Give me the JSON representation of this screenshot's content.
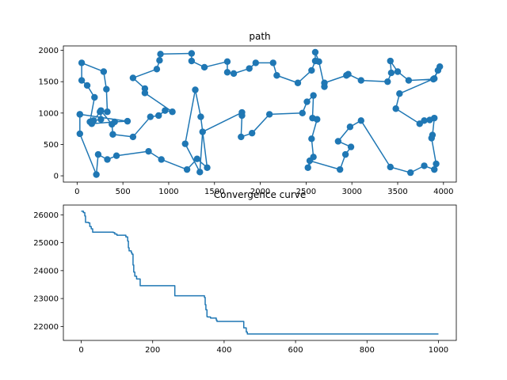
{
  "chart_data": [
    {
      "type": "line",
      "title": "path",
      "xlabel": "",
      "ylabel": "",
      "xlim": [
        -150,
        4140
      ],
      "ylim": [
        -100,
        2070
      ],
      "xticks": [
        0,
        500,
        1000,
        1500,
        2000,
        2500,
        3000,
        3500,
        4000
      ],
      "yticks": [
        0,
        500,
        1000,
        1500,
        2000
      ],
      "xtick_labels": [
        "0",
        "500",
        "1000",
        "1500",
        "2000",
        "2500",
        "3000",
        "3500",
        "4000"
      ],
      "ytick_labels": [
        "0",
        "500",
        "1000",
        "1500",
        "2000"
      ],
      "grid": false,
      "markers": true,
      "color": "#1f77b4",
      "series": [
        {
          "x": [
            30,
            30,
            210,
            230,
            330,
            430,
            780,
            920,
            1200,
            1310,
            1420,
            1350,
            1290,
            1180,
            1340,
            1370,
            1800,
            1800,
            1790,
            1910,
            2100,
            2460,
            2510,
            2580,
            2570,
            2620,
            2560,
            2580,
            2520,
            2540,
            2870,
            2930,
            2990,
            2850,
            2980,
            3100,
            3420,
            3640,
            3790,
            3900,
            3920,
            3870,
            3880,
            3900,
            3850,
            3790,
            3740,
            3480,
            3520,
            3900,
            3960,
            3940,
            3890,
            3620,
            3500,
            3420,
            3430,
            3390,
            3100,
            2960,
            2940,
            2700,
            2700,
            2640,
            2600,
            2600,
            2560,
            2410,
            2180,
            2140,
            1950,
            1880,
            1710,
            1640,
            1640,
            1390,
            1250,
            1250,
            910,
            900,
            870,
            610,
            740,
            740,
            1040,
            960,
            890,
            800,
            610,
            390,
            380,
            260,
            260,
            180,
            140,
            190,
            110,
            50,
            50,
            290,
            320,
            330,
            250,
            160,
            410,
            550,
            30
          ],
          "y": [
            980,
            670,
            20,
            340,
            260,
            320,
            390,
            260,
            100,
            270,
            130,
            940,
            1370,
            510,
            60,
            700,
            1010,
            960,
            620,
            680,
            980,
            1000,
            1180,
            1280,
            920,
            900,
            590,
            300,
            130,
            240,
            100,
            340,
            460,
            550,
            780,
            880,
            140,
            50,
            160,
            100,
            190,
            600,
            650,
            920,
            890,
            880,
            830,
            1070,
            1310,
            1550,
            1740,
            1680,
            1540,
            1520,
            1660,
            1830,
            1640,
            1500,
            1520,
            1620,
            1600,
            1480,
            1420,
            1820,
            1970,
            1830,
            1680,
            1480,
            1600,
            1800,
            1800,
            1710,
            1630,
            1650,
            1820,
            1730,
            1830,
            1950,
            1940,
            1840,
            1700,
            1560,
            1390,
            1320,
            1020,
            1040,
            960,
            940,
            620,
            660,
            820,
            1040,
            900,
            880,
            860,
            1250,
            1440,
            1520,
            1800,
            1660,
            1380,
            1020,
            1020,
            830,
            860,
            870,
            980
          ]
        }
      ]
    },
    {
      "type": "line",
      "title": "Convergence curve",
      "xlabel": "",
      "ylabel": "",
      "xlim": [
        -50,
        1050
      ],
      "ylim": [
        21500,
        26350
      ],
      "xticks": [
        0,
        200,
        400,
        600,
        800,
        1000
      ],
      "yticks": [
        22000,
        23000,
        24000,
        25000,
        26000
      ],
      "xtick_labels": [
        "0",
        "200",
        "400",
        "600",
        "800",
        "1000"
      ],
      "ytick_labels": [
        "22000",
        "23000",
        "24000",
        "25000",
        "26000"
      ],
      "grid": false,
      "markers": false,
      "color": "#1f77b4",
      "series": [
        {
          "x": [
            0,
            6,
            6,
            10,
            10,
            12,
            12,
            20,
            20,
            24,
            24,
            28,
            28,
            32,
            32,
            90,
            90,
            94,
            94,
            100,
            100,
            125,
            125,
            130,
            130,
            132,
            132,
            134,
            134,
            140,
            140,
            142,
            142,
            145,
            145,
            147,
            147,
            150,
            150,
            155,
            155,
            165,
            165,
            262,
            262,
            345,
            345,
            347,
            347,
            349,
            349,
            352,
            352,
            354,
            354,
            362,
            362,
            370,
            370,
            378,
            378,
            380,
            380,
            400,
            400,
            455,
            455,
            462,
            462,
            465,
            465,
            1000
          ],
          "y": [
            26130,
            26130,
            26080,
            26080,
            25960,
            25960,
            25730,
            25730,
            25710,
            25710,
            25580,
            25580,
            25500,
            25500,
            25380,
            25380,
            25360,
            25360,
            25310,
            25310,
            25270,
            25270,
            25210,
            25210,
            25060,
            25060,
            24820,
            24820,
            24710,
            24710,
            24650,
            24650,
            24590,
            24590,
            24200,
            24200,
            23950,
            23950,
            23800,
            23800,
            23700,
            23700,
            23460,
            23460,
            23100,
            23100,
            23040,
            23040,
            22780,
            22780,
            22600,
            22600,
            22350,
            22350,
            22340,
            22340,
            22300,
            22300,
            22300,
            22300,
            22230,
            22230,
            22180,
            22180,
            22180,
            22180,
            21950,
            21950,
            21800,
            21800,
            21730,
            21730
          ]
        }
      ]
    }
  ]
}
